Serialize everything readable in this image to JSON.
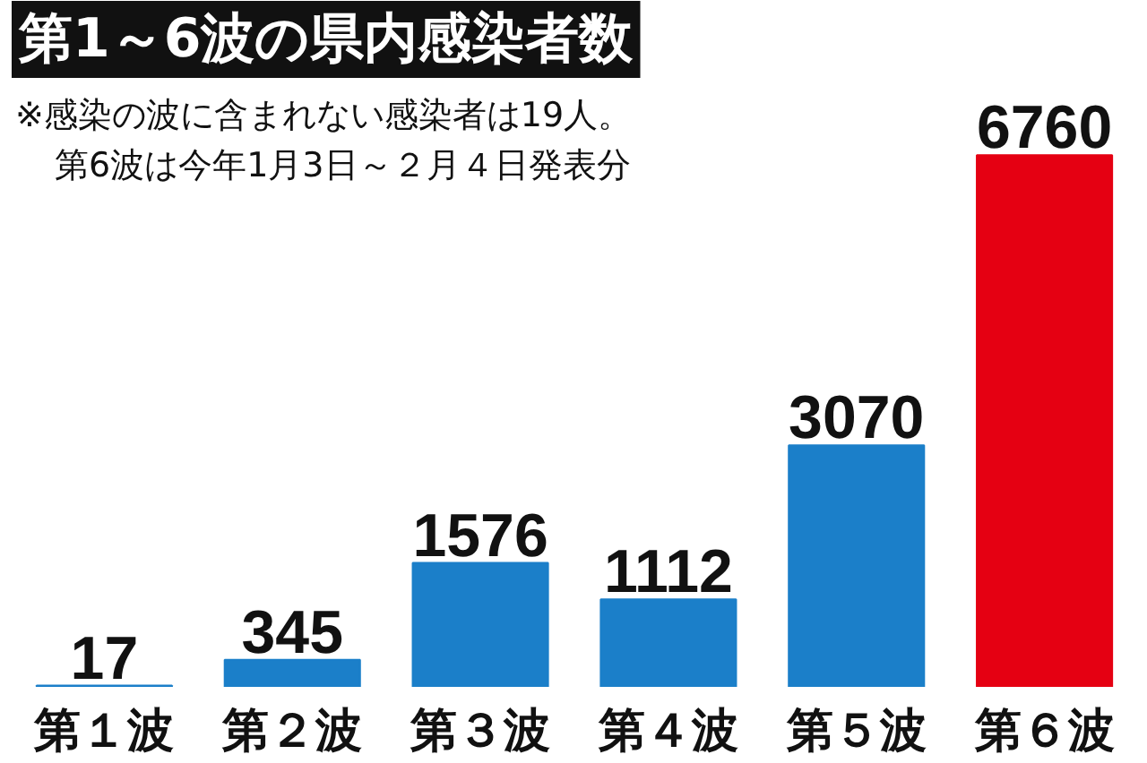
{
  "chart_data": {
    "type": "bar",
    "title": "第1～6波の県内感染者数",
    "annotations": [
      "※感染の波に含まれない感染者は19人。",
      "第6波は今年1月3日～２月４日発表分"
    ],
    "categories": [
      "第１波",
      "第２波",
      "第３波",
      "第４波",
      "第５波",
      "第６波"
    ],
    "values": [
      17,
      345,
      1576,
      1112,
      3070,
      6760
    ],
    "colors": [
      "#1b7fc9",
      "#1b7fc9",
      "#1b7fc9",
      "#1b7fc9",
      "#1b7fc9",
      "#e50012"
    ],
    "data_labels": true
  }
}
